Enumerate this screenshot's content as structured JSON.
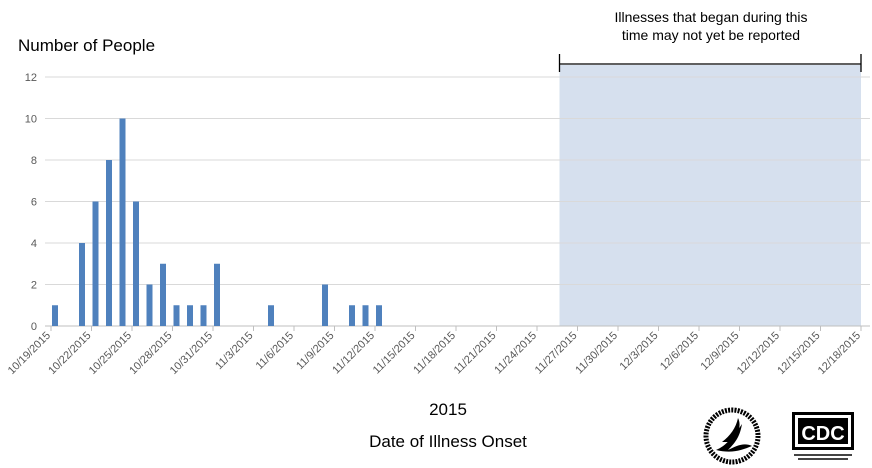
{
  "chart_data": {
    "type": "bar",
    "ylabel": "Number of People",
    "xlabel": "Date of Illness Onset",
    "year_label": "2015",
    "ylim": [
      0,
      12
    ],
    "yticks": [
      0,
      2,
      4,
      6,
      8,
      10,
      12
    ],
    "grid": true,
    "x_range": [
      "10/19/2015",
      "12/18/2015"
    ],
    "xtick_labels": [
      "10/19/2015",
      "10/22/2015",
      "10/25/2015",
      "10/28/2015",
      "10/31/2015",
      "11/3/2015",
      "11/6/2015",
      "11/9/2015",
      "11/12/2015",
      "11/15/2015",
      "11/18/2015",
      "11/21/2015",
      "11/24/2015",
      "11/27/2015",
      "11/30/2015",
      "12/3/2015",
      "12/6/2015",
      "12/9/2015",
      "12/12/2015",
      "12/15/2015",
      "12/18/2015"
    ],
    "bars": [
      {
        "date": "10/19/2015",
        "value": 1
      },
      {
        "date": "10/21/2015",
        "value": 4
      },
      {
        "date": "10/22/2015",
        "value": 6
      },
      {
        "date": "10/23/2015",
        "value": 8
      },
      {
        "date": "10/24/2015",
        "value": 10
      },
      {
        "date": "10/25/2015",
        "value": 6
      },
      {
        "date": "10/26/2015",
        "value": 2
      },
      {
        "date": "10/27/2015",
        "value": 3
      },
      {
        "date": "10/28/2015",
        "value": 1
      },
      {
        "date": "10/29/2015",
        "value": 1
      },
      {
        "date": "10/30/2015",
        "value": 1
      },
      {
        "date": "10/31/2015",
        "value": 3
      },
      {
        "date": "11/4/2015",
        "value": 1
      },
      {
        "date": "11/8/2015",
        "value": 2
      },
      {
        "date": "11/10/2015",
        "value": 1
      },
      {
        "date": "11/11/2015",
        "value": 1
      },
      {
        "date": "11/12/2015",
        "value": 1
      }
    ],
    "shaded_region": {
      "start": "11/25/2015",
      "end": "12/18/2015",
      "color": "#d6e0ee"
    },
    "annotation": [
      "Illnesses that began during this",
      "time may not yet be reported"
    ],
    "bar_color": "#4f81bd"
  },
  "logos": {
    "hhs": "DEPARTMENT OF HEALTH & HUMAN SERVICES USA",
    "cdc": "CDC"
  }
}
